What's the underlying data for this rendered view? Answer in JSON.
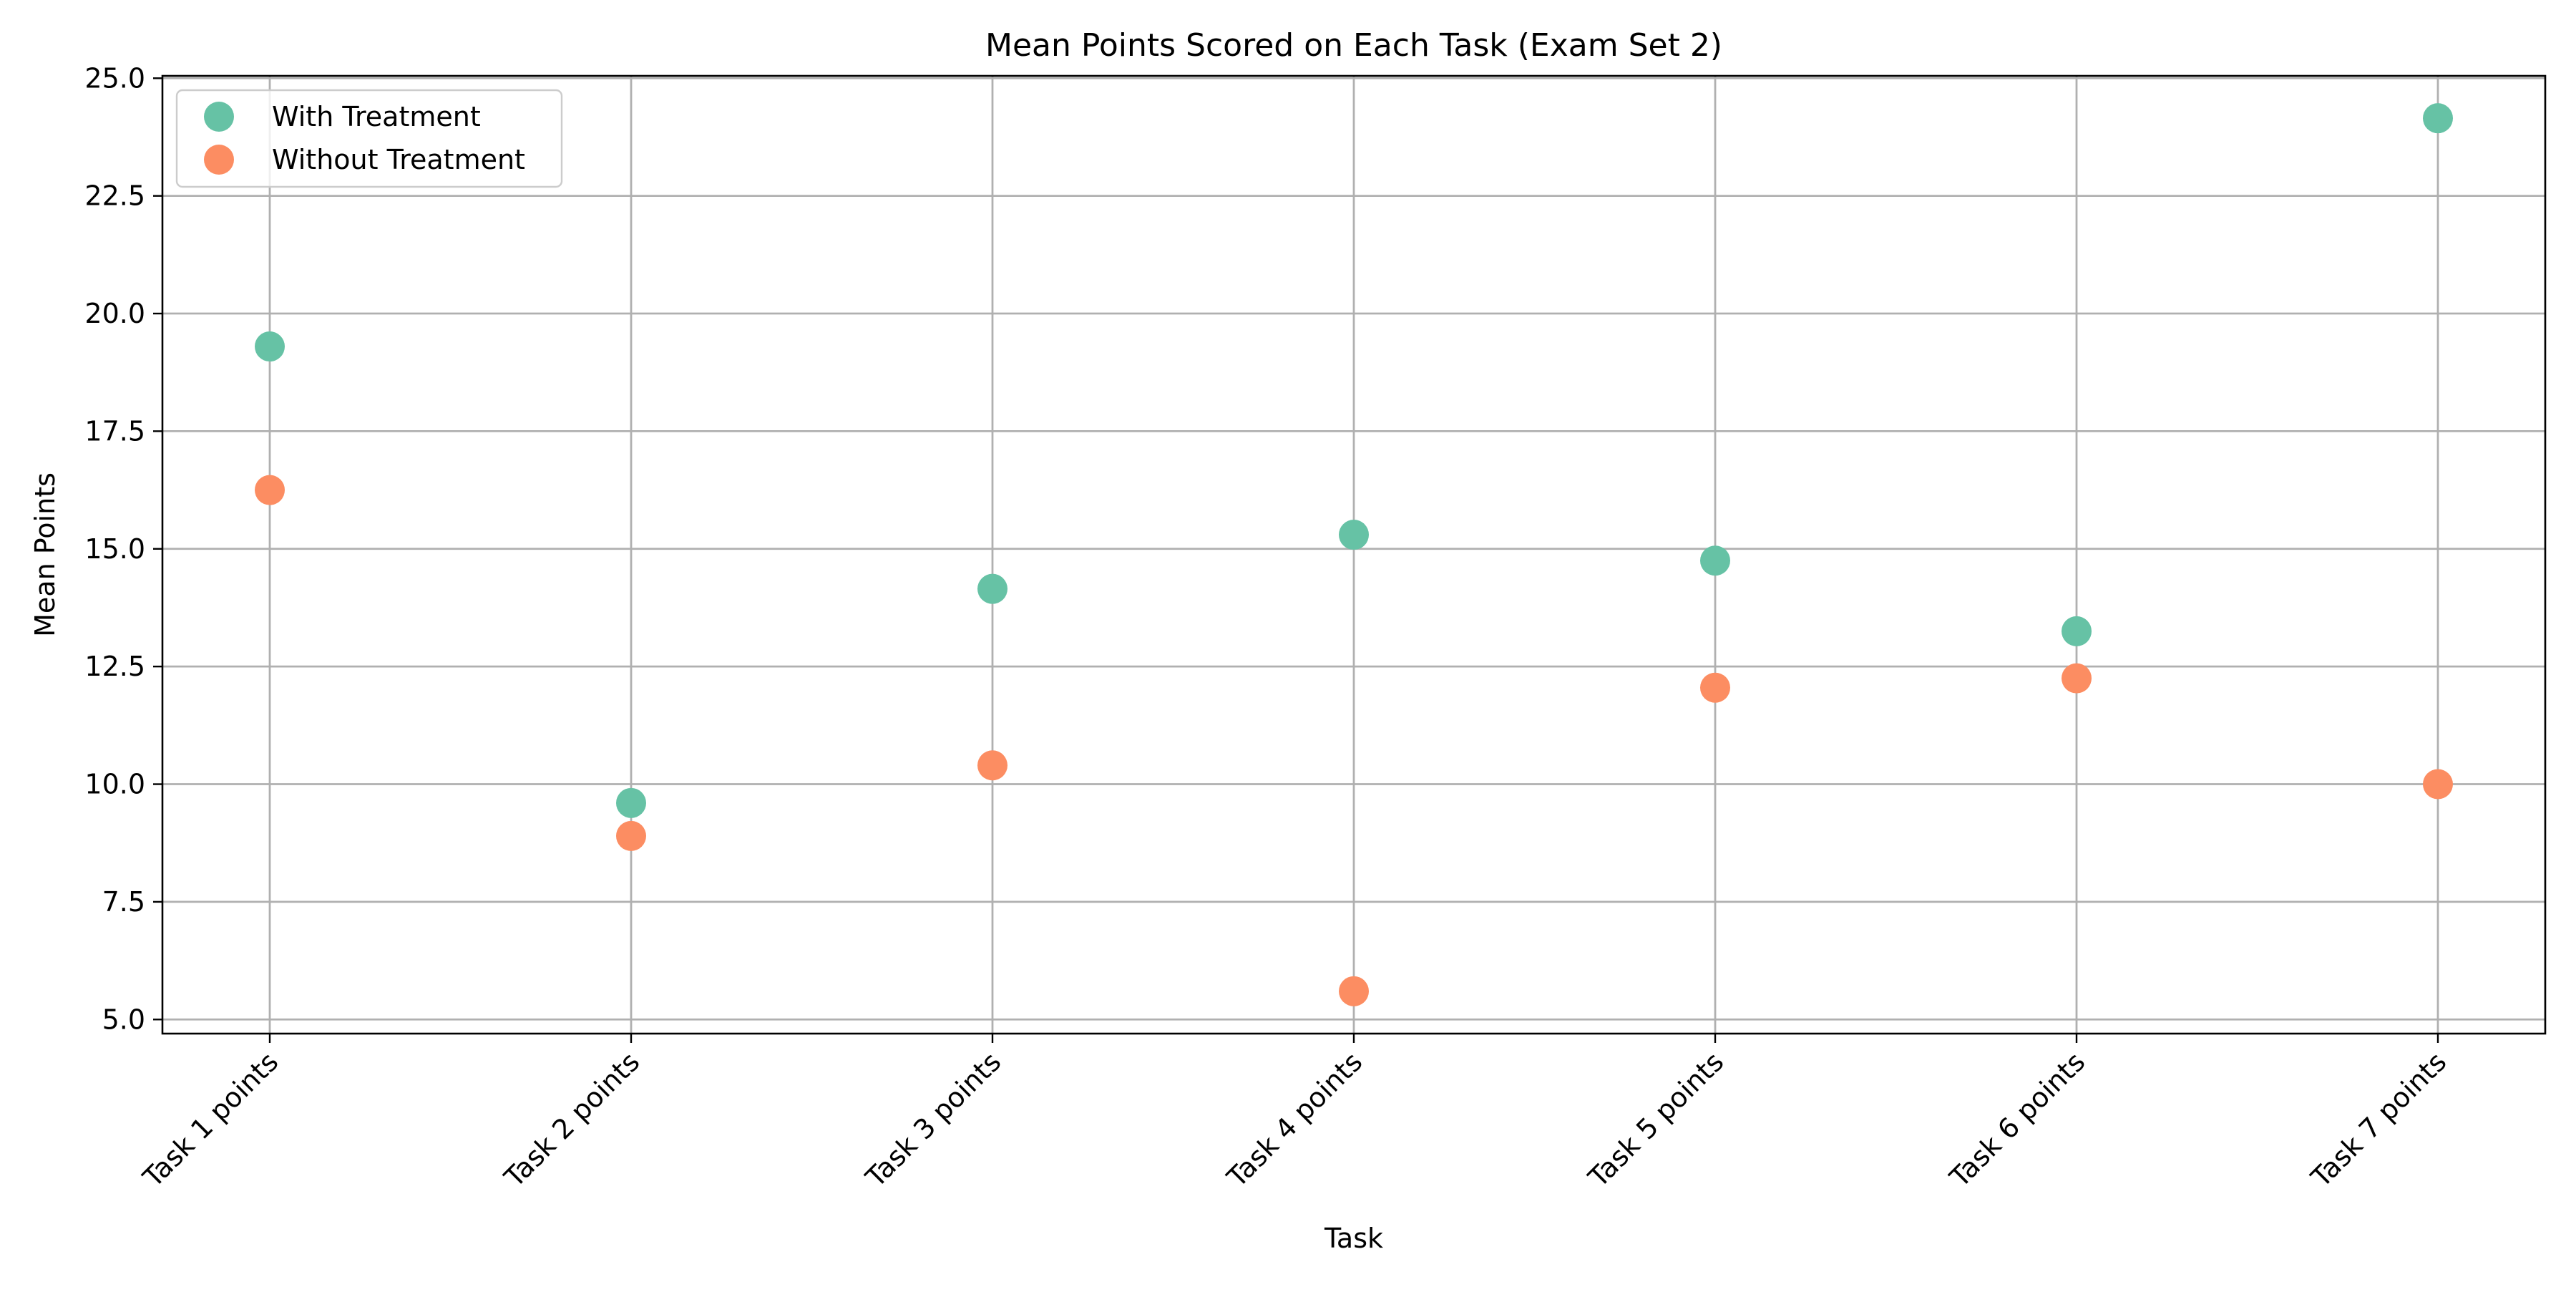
{
  "chart_data": {
    "type": "scatter",
    "title": "Mean Points Scored on Each Task (Exam Set 2)",
    "xlabel": "Task",
    "ylabel": "Mean Points",
    "categories": [
      "Task 1 points",
      "Task 2 points",
      "Task 3 points",
      "Task 4 points",
      "Task 5 points",
      "Task 6 points",
      "Task 7 points"
    ],
    "ylim": [
      4.7,
      25.05
    ],
    "yticks": [
      5.0,
      7.5,
      10.0,
      12.5,
      15.0,
      17.5,
      20.0,
      22.5,
      25.0
    ],
    "ytick_labels": [
      "5.0",
      "7.5",
      "10.0",
      "12.5",
      "15.0",
      "17.5",
      "20.0",
      "22.5",
      "25.0"
    ],
    "grid": true,
    "legend_position": "top-left",
    "series": [
      {
        "name": "With Treatment",
        "color": "#66c2a5",
        "values": [
          19.3,
          9.6,
          14.15,
          15.3,
          14.75,
          13.25,
          24.15
        ]
      },
      {
        "name": "Without Treatment",
        "color": "#fc8d62",
        "values": [
          16.25,
          8.9,
          10.4,
          5.6,
          12.05,
          12.25,
          10.0
        ]
      }
    ]
  }
}
